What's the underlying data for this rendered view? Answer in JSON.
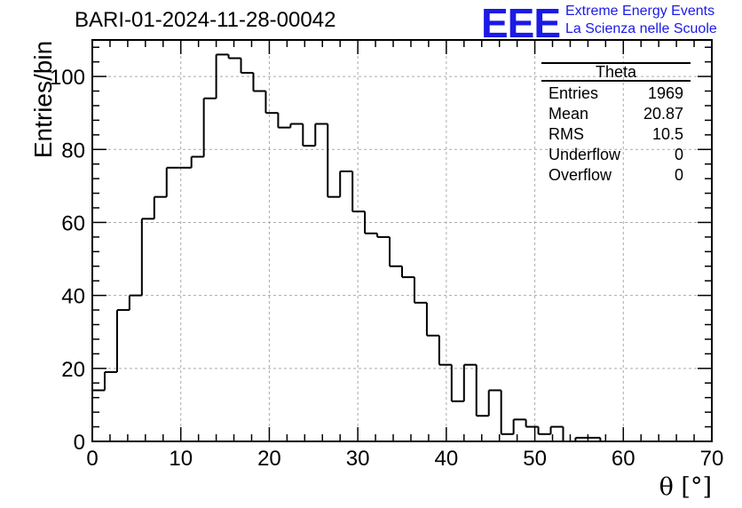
{
  "header": {
    "title": "BARI-01-2024-11-28-00042",
    "logo": "EEE",
    "logo_line1": "Extreme Energy Events",
    "logo_line2": "La Scienza nelle Scuole"
  },
  "stats": {
    "name": "Theta",
    "rows": [
      {
        "label": "Entries",
        "value": "1969"
      },
      {
        "label": "Mean",
        "value": "20.87"
      },
      {
        "label": "RMS",
        "value": "10.5"
      },
      {
        "label": "Underflow",
        "value": "0"
      },
      {
        "label": "Overflow",
        "value": "0"
      }
    ]
  },
  "chart_data": {
    "type": "histogram",
    "title": "BARI-01-2024-11-28-00042",
    "xlabel": "θ [°]",
    "ylabel": "Entries/bin",
    "xlim": [
      0,
      70
    ],
    "ylim": [
      0,
      110
    ],
    "bin_width": 1.4,
    "xticks": [
      0,
      10,
      20,
      30,
      40,
      50,
      60,
      70
    ],
    "yticks": [
      0,
      20,
      40,
      60,
      80,
      100
    ],
    "grid": true,
    "values": [
      14,
      19,
      36,
      40,
      61,
      67,
      75,
      75,
      78,
      94,
      106,
      105,
      101,
      96,
      90,
      86,
      87,
      81,
      87,
      67,
      74,
      63,
      57,
      56,
      48,
      45,
      38,
      29,
      21,
      11,
      21,
      7,
      14,
      2,
      6,
      4,
      2,
      4,
      0,
      1,
      1,
      0,
      0,
      0,
      0,
      0,
      0,
      0,
      0,
      0
    ]
  }
}
